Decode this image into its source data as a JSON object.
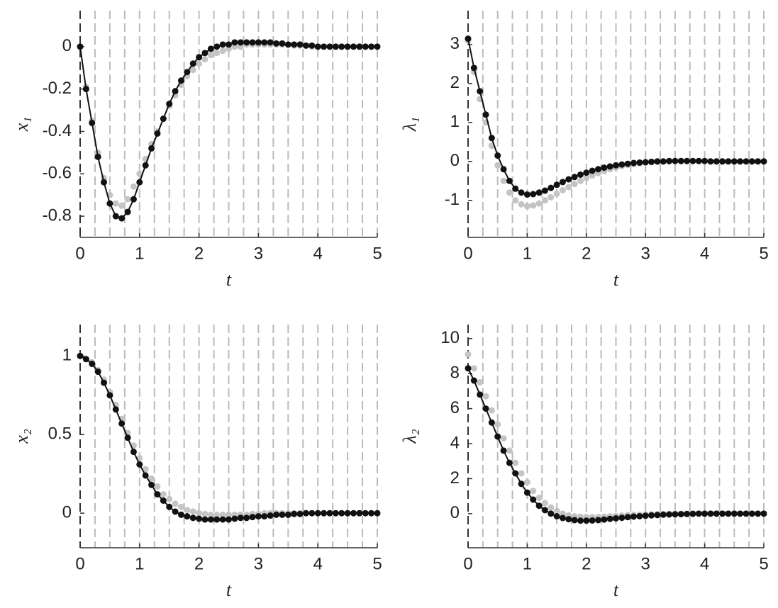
{
  "chart_data": [
    {
      "type": "line",
      "xlabel": "t",
      "ylabel": "x₁",
      "xlim": [
        0,
        5
      ],
      "xticks": [
        0,
        1,
        2,
        3,
        4,
        5
      ],
      "ylim": [
        -0.9,
        0.17
      ],
      "yticks": [
        -0.8,
        -0.6,
        -0.4,
        -0.2,
        0
      ],
      "xgrid": [
        0,
        0.25,
        0.5,
        0.75,
        1,
        1.25,
        1.5,
        1.75,
        2,
        2.25,
        2.5,
        2.75,
        3,
        3.25,
        3.5,
        3.75,
        4,
        4.25,
        4.5,
        4.75,
        5
      ],
      "x": [
        0,
        0.1,
        0.2,
        0.3,
        0.4,
        0.5,
        0.6,
        0.7,
        0.8,
        0.9,
        1,
        1.1,
        1.2,
        1.3,
        1.4,
        1.5,
        1.6,
        1.7,
        1.8,
        1.9,
        2,
        2.1,
        2.2,
        2.3,
        2.4,
        2.5,
        2.6,
        2.7,
        2.8,
        2.9,
        3,
        3.1,
        3.2,
        3.3,
        3.4,
        3.5,
        3.6,
        3.7,
        3.8,
        3.9,
        4,
        4.1,
        4.2,
        4.3,
        4.4,
        4.5,
        4.6,
        4.7,
        4.8,
        4.9,
        5
      ],
      "series": [
        {
          "color": "#c4c4c4",
          "line": false,
          "values": [
            0,
            -0.19,
            -0.35,
            -0.5,
            -0.62,
            -0.7,
            -0.74,
            -0.75,
            -0.72,
            -0.66,
            -0.6,
            -0.53,
            -0.46,
            -0.4,
            -0.34,
            -0.28,
            -0.23,
            -0.18,
            -0.14,
            -0.11,
            -0.08,
            -0.06,
            -0.04,
            -0.03,
            -0.02,
            -0.01,
            0,
            0,
            0.01,
            0.01,
            0.01,
            0.01,
            0.01,
            0.01,
            0.01,
            0.01,
            0.005,
            0.005,
            0.005,
            0,
            0,
            0,
            0,
            0,
            0,
            0,
            0,
            0,
            0,
            0,
            0
          ]
        },
        {
          "color": "#111111",
          "line": true,
          "values": [
            0,
            -0.2,
            -0.36,
            -0.52,
            -0.64,
            -0.74,
            -0.8,
            -0.81,
            -0.78,
            -0.72,
            -0.64,
            -0.56,
            -0.48,
            -0.41,
            -0.34,
            -0.27,
            -0.21,
            -0.16,
            -0.12,
            -0.08,
            -0.05,
            -0.03,
            -0.01,
            0,
            0.01,
            0.01,
            0.02,
            0.02,
            0.02,
            0.02,
            0.02,
            0.02,
            0.02,
            0.015,
            0.015,
            0.01,
            0.01,
            0.01,
            0.005,
            0.005,
            0,
            0,
            0,
            0,
            0,
            0,
            0,
            0,
            0,
            0,
            0
          ]
        }
      ]
    },
    {
      "type": "line",
      "xlabel": "t",
      "ylabel": "λ₁",
      "xlim": [
        0,
        5
      ],
      "xticks": [
        0,
        1,
        2,
        3,
        4,
        5
      ],
      "ylim": [
        -1.95,
        3.87
      ],
      "yticks": [
        -1,
        0,
        1,
        2,
        3
      ],
      "xgrid": [
        0,
        0.25,
        0.5,
        0.75,
        1,
        1.25,
        1.5,
        1.75,
        2,
        2.25,
        2.5,
        2.75,
        3,
        3.25,
        3.5,
        3.75,
        4,
        4.25,
        4.5,
        4.75,
        5
      ],
      "x": [
        0,
        0.1,
        0.2,
        0.3,
        0.4,
        0.5,
        0.6,
        0.7,
        0.8,
        0.9,
        1,
        1.1,
        1.2,
        1.3,
        1.4,
        1.5,
        1.6,
        1.7,
        1.8,
        1.9,
        2,
        2.1,
        2.2,
        2.3,
        2.4,
        2.5,
        2.6,
        2.7,
        2.8,
        2.9,
        3,
        3.1,
        3.2,
        3.3,
        3.4,
        3.5,
        3.6,
        3.7,
        3.8,
        3.9,
        4,
        4.1,
        4.2,
        4.3,
        4.4,
        4.5,
        4.6,
        4.7,
        4.8,
        4.9,
        5
      ],
      "series": [
        {
          "color": "#c4c4c4",
          "line": false,
          "values": [
            3.1,
            2.3,
            1.6,
            1.0,
            0.4,
            -0.1,
            -0.5,
            -0.8,
            -1.0,
            -1.1,
            -1.15,
            -1.13,
            -1.08,
            -1.0,
            -0.92,
            -0.83,
            -0.74,
            -0.66,
            -0.58,
            -0.5,
            -0.43,
            -0.36,
            -0.3,
            -0.25,
            -0.2,
            -0.16,
            -0.12,
            -0.09,
            -0.07,
            -0.05,
            -0.03,
            -0.02,
            -0.01,
            0,
            0,
            0.01,
            0.01,
            0.01,
            0.01,
            0.01,
            0.01,
            0,
            0,
            0,
            0,
            0,
            0,
            0,
            0,
            0,
            0
          ]
        },
        {
          "color": "#111111",
          "line": true,
          "values": [
            3.15,
            2.4,
            1.8,
            1.2,
            0.6,
            0.15,
            -0.2,
            -0.5,
            -0.7,
            -0.8,
            -0.85,
            -0.84,
            -0.8,
            -0.75,
            -0.68,
            -0.6,
            -0.53,
            -0.46,
            -0.4,
            -0.34,
            -0.29,
            -0.24,
            -0.2,
            -0.16,
            -0.13,
            -0.1,
            -0.08,
            -0.06,
            -0.04,
            -0.03,
            -0.02,
            -0.01,
            0,
            0,
            0.01,
            0.01,
            0.01,
            0.01,
            0.01,
            0.01,
            0.01,
            0,
            0,
            0,
            0,
            0,
            0,
            0,
            0,
            0,
            0
          ]
        }
      ]
    },
    {
      "type": "line",
      "xlabel": "t",
      "ylabel": "x₂",
      "xlim": [
        0,
        5
      ],
      "xticks": [
        0,
        1,
        2,
        3,
        4,
        5
      ],
      "ylim": [
        -0.22,
        1.2
      ],
      "yticks": [
        0,
        0.5,
        1
      ],
      "xgrid": [
        0,
        0.25,
        0.5,
        0.75,
        1,
        1.25,
        1.5,
        1.75,
        2,
        2.25,
        2.5,
        2.75,
        3,
        3.25,
        3.5,
        3.75,
        4,
        4.25,
        4.5,
        4.75,
        5
      ],
      "x": [
        0,
        0.1,
        0.2,
        0.3,
        0.4,
        0.5,
        0.6,
        0.7,
        0.8,
        0.9,
        1,
        1.1,
        1.2,
        1.3,
        1.4,
        1.5,
        1.6,
        1.7,
        1.8,
        1.9,
        2,
        2.1,
        2.2,
        2.3,
        2.4,
        2.5,
        2.6,
        2.7,
        2.8,
        2.9,
        3,
        3.1,
        3.2,
        3.3,
        3.4,
        3.5,
        3.6,
        3.7,
        3.8,
        3.9,
        4,
        4.1,
        4.2,
        4.3,
        4.4,
        4.5,
        4.6,
        4.7,
        4.8,
        4.9,
        5
      ],
      "series": [
        {
          "color": "#c4c4c4",
          "line": false,
          "values": [
            1,
            0.98,
            0.96,
            0.91,
            0.85,
            0.77,
            0.69,
            0.6,
            0.51,
            0.43,
            0.35,
            0.28,
            0.22,
            0.17,
            0.12,
            0.09,
            0.06,
            0.04,
            0.02,
            0.01,
            0,
            -0.005,
            -0.01,
            -0.01,
            -0.01,
            -0.01,
            -0.01,
            -0.01,
            -0.01,
            -0.005,
            -0.005,
            0,
            0,
            0,
            0,
            0,
            0,
            0,
            0,
            0,
            0,
            0,
            0,
            0,
            0,
            0,
            0,
            0,
            0,
            0,
            0
          ]
        },
        {
          "color": "#111111",
          "line": true,
          "values": [
            1,
            0.98,
            0.95,
            0.9,
            0.83,
            0.75,
            0.66,
            0.57,
            0.48,
            0.39,
            0.31,
            0.24,
            0.18,
            0.12,
            0.08,
            0.04,
            0.01,
            -0.01,
            -0.02,
            -0.03,
            -0.035,
            -0.04,
            -0.04,
            -0.04,
            -0.04,
            -0.04,
            -0.035,
            -0.03,
            -0.03,
            -0.025,
            -0.02,
            -0.02,
            -0.015,
            -0.01,
            -0.01,
            -0.01,
            -0.005,
            -0.005,
            0,
            0,
            0,
            0,
            0,
            0,
            0,
            0,
            0,
            0,
            0,
            0,
            0
          ]
        }
      ]
    },
    {
      "type": "line",
      "xlabel": "t",
      "ylabel": "λ₂",
      "xlim": [
        0,
        5
      ],
      "xticks": [
        0,
        1,
        2,
        3,
        4,
        5
      ],
      "ylim": [
        -1.95,
        10.8
      ],
      "yticks": [
        0,
        2,
        4,
        6,
        8,
        10
      ],
      "xgrid": [
        0,
        0.25,
        0.5,
        0.75,
        1,
        1.25,
        1.5,
        1.75,
        2,
        2.25,
        2.5,
        2.75,
        3,
        3.25,
        3.5,
        3.75,
        4,
        4.25,
        4.5,
        4.75,
        5
      ],
      "x": [
        0,
        0.1,
        0.2,
        0.3,
        0.4,
        0.5,
        0.6,
        0.7,
        0.8,
        0.9,
        1,
        1.1,
        1.2,
        1.3,
        1.4,
        1.5,
        1.6,
        1.7,
        1.8,
        1.9,
        2,
        2.1,
        2.2,
        2.3,
        2.4,
        2.5,
        2.6,
        2.7,
        2.8,
        2.9,
        3,
        3.1,
        3.2,
        3.3,
        3.4,
        3.5,
        3.6,
        3.7,
        3.8,
        3.9,
        4,
        4.1,
        4.2,
        4.3,
        4.4,
        4.5,
        4.6,
        4.7,
        4.8,
        4.9,
        5
      ],
      "series": [
        {
          "color": "#c4c4c4",
          "line": false,
          "values": [
            9.1,
            8.3,
            7.5,
            6.7,
            5.9,
            5.1,
            4.3,
            3.6,
            2.9,
            2.3,
            1.8,
            1.3,
            0.9,
            0.6,
            0.35,
            0.15,
            0,
            -0.1,
            -0.15,
            -0.18,
            -0.2,
            -0.2,
            -0.19,
            -0.17,
            -0.15,
            -0.13,
            -0.11,
            -0.09,
            -0.07,
            -0.06,
            -0.05,
            -0.04,
            -0.03,
            -0.02,
            -0.01,
            0,
            0,
            0,
            0,
            0,
            0,
            0,
            0,
            0,
            0,
            0,
            0,
            0,
            0,
            0,
            0
          ]
        },
        {
          "color": "#111111",
          "line": true,
          "values": [
            8.3,
            7.6,
            6.8,
            6.0,
            5.2,
            4.4,
            3.6,
            2.9,
            2.3,
            1.7,
            1.2,
            0.8,
            0.45,
            0.2,
            0,
            -0.15,
            -0.25,
            -0.32,
            -0.37,
            -0.4,
            -0.4,
            -0.39,
            -0.37,
            -0.34,
            -0.3,
            -0.27,
            -0.24,
            -0.2,
            -0.17,
            -0.15,
            -0.12,
            -0.1,
            -0.08,
            -0.06,
            -0.05,
            -0.04,
            -0.03,
            -0.02,
            -0.01,
            0,
            0,
            0,
            0,
            0,
            0,
            0,
            0,
            0,
            0,
            0,
            0
          ]
        }
      ]
    }
  ]
}
